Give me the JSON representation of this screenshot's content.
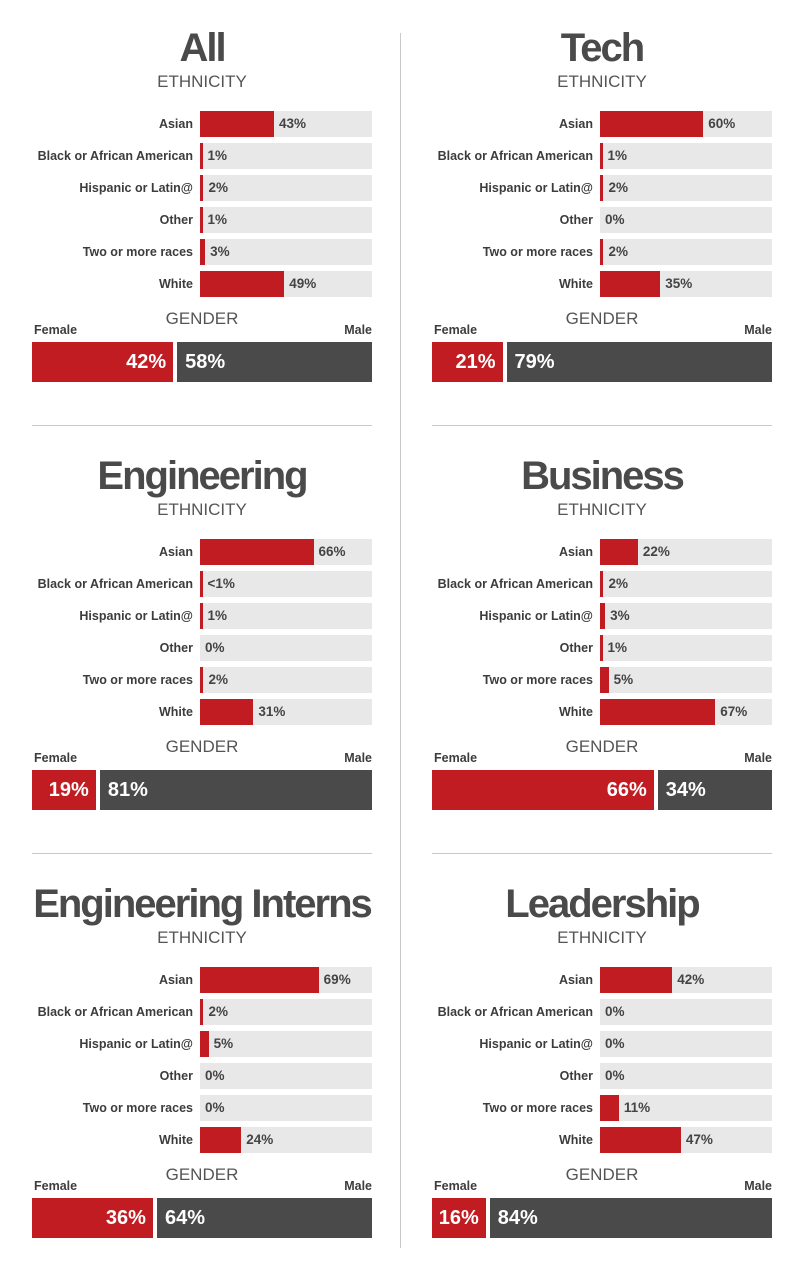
{
  "chart_data": [
    {
      "type": "bar",
      "title": "All",
      "ethnicity_title": "ETHNICITY",
      "categories": [
        "Asian",
        "Black or African American",
        "Hispanic or Latin@",
        "Other",
        "Two or more races",
        "White"
      ],
      "values": [
        43,
        1,
        2,
        1,
        3,
        49
      ],
      "value_labels": [
        "43%",
        "1%",
        "2%",
        "1%",
        "3%",
        "49%"
      ],
      "xlim": [
        0,
        100
      ],
      "gender": {
        "title": "GENDER",
        "female_label": "Female",
        "male_label": "Male",
        "female": 42,
        "male": 58,
        "female_text": "42%",
        "male_text": "58%"
      }
    },
    {
      "type": "bar",
      "title": "Tech",
      "ethnicity_title": "ETHNICITY",
      "categories": [
        "Asian",
        "Black or African American",
        "Hispanic or Latin@",
        "Other",
        "Two or more races",
        "White"
      ],
      "values": [
        60,
        1,
        2,
        0,
        2,
        35
      ],
      "value_labels": [
        "60%",
        "1%",
        "2%",
        "0%",
        "2%",
        "35%"
      ],
      "xlim": [
        0,
        100
      ],
      "gender": {
        "title": "GENDER",
        "female_label": "Female",
        "male_label": "Male",
        "female": 21,
        "male": 79,
        "female_text": "21%",
        "male_text": "79%"
      }
    },
    {
      "type": "bar",
      "title": "Engineering",
      "ethnicity_title": "ETHNICITY",
      "categories": [
        "Asian",
        "Black or African American",
        "Hispanic or Latin@",
        "Other",
        "Two or more races",
        "White"
      ],
      "values": [
        66,
        0.5,
        1,
        0,
        2,
        31
      ],
      "value_labels": [
        "66%",
        "<1%",
        "1%",
        "0%",
        "2%",
        "31%"
      ],
      "xlim": [
        0,
        100
      ],
      "gender": {
        "title": "GENDER",
        "female_label": "Female",
        "male_label": "Male",
        "female": 19,
        "male": 81,
        "female_text": "19%",
        "male_text": "81%"
      }
    },
    {
      "type": "bar",
      "title": "Business",
      "ethnicity_title": "ETHNICITY",
      "categories": [
        "Asian",
        "Black or African American",
        "Hispanic or Latin@",
        "Other",
        "Two or more races",
        "White"
      ],
      "values": [
        22,
        2,
        3,
        1,
        5,
        67
      ],
      "value_labels": [
        "22%",
        "2%",
        "3%",
        "1%",
        "5%",
        "67%"
      ],
      "xlim": [
        0,
        100
      ],
      "gender": {
        "title": "GENDER",
        "female_label": "Female",
        "male_label": "Male",
        "female": 66,
        "male": 34,
        "female_text": "66%",
        "male_text": "34%"
      }
    },
    {
      "type": "bar",
      "title": "Engineering Interns",
      "ethnicity_title": "ETHNICITY",
      "categories": [
        "Asian",
        "Black or African American",
        "Hispanic or Latin@",
        "Other",
        "Two or more races",
        "White"
      ],
      "values": [
        69,
        2,
        5,
        0,
        0,
        24
      ],
      "value_labels": [
        "69%",
        "2%",
        "5%",
        "0%",
        "0%",
        "24%"
      ],
      "xlim": [
        0,
        100
      ],
      "gender": {
        "title": "GENDER",
        "female_label": "Female",
        "male_label": "Male",
        "female": 36,
        "male": 64,
        "female_text": "36%",
        "male_text": "64%"
      }
    },
    {
      "type": "bar",
      "title": "Leadership",
      "ethnicity_title": "ETHNICITY",
      "categories": [
        "Asian",
        "Black or African American",
        "Hispanic or Latin@",
        "Other",
        "Two or more races",
        "White"
      ],
      "values": [
        42,
        0,
        0,
        0,
        11,
        47
      ],
      "value_labels": [
        "42%",
        "0%",
        "0%",
        "0%",
        "11%",
        "47%"
      ],
      "xlim": [
        0,
        100
      ],
      "gender": {
        "title": "GENDER",
        "female_label": "Female",
        "male_label": "Male",
        "female": 16,
        "male": 84,
        "female_text": "16%",
        "male_text": "84%"
      }
    }
  ],
  "colors": {
    "female": "#c01c22",
    "male": "#4a4a4a",
    "track": "#e8e8e8",
    "bar": "#c01c22"
  }
}
